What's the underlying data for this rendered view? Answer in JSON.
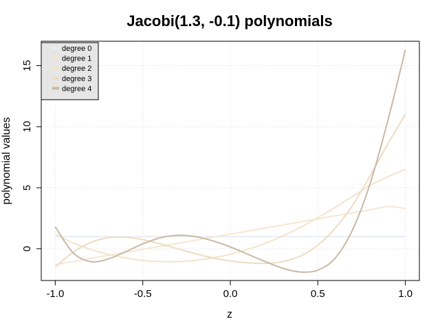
{
  "chart_data": {
    "type": "line",
    "title": "Jacobi(1.3, -0.1) polynomials",
    "xlabel": "z",
    "ylabel": "polynomial values",
    "xlim": [
      -1.0,
      1.0
    ],
    "ylim": [
      -2.6,
      17.0
    ],
    "x_ticks": [
      -1.0,
      -0.5,
      0.0,
      0.5,
      1.0
    ],
    "x_tick_labels": [
      "-1.0",
      "-0.5",
      "0.0",
      "0.5",
      "1.0"
    ],
    "y_ticks": [
      0,
      5,
      10,
      15
    ],
    "y_tick_labels": [
      "0",
      "5",
      "10",
      "15"
    ],
    "grid": true,
    "legend_position": "top-left",
    "x": [
      -1.0,
      -0.9,
      -0.8,
      -0.7,
      -0.6,
      -0.5,
      -0.4,
      -0.3,
      -0.2,
      -0.1,
      0.0,
      0.1,
      0.2,
      0.3,
      0.4,
      0.5,
      0.6,
      0.7,
      0.8,
      0.9,
      1.0
    ],
    "series": [
      {
        "name": "degree 0",
        "color": "#e8eef5",
        "values": [
          1,
          1,
          1,
          1,
          1,
          1,
          1,
          1,
          1,
          1,
          1,
          1,
          1,
          1,
          1,
          1,
          1,
          1,
          1,
          1,
          1
        ]
      },
      {
        "name": "degree 1",
        "color": "#f6e6d2",
        "values": [
          -1.3,
          -1.05,
          -0.8,
          -0.55,
          -0.3,
          -0.05,
          0.2,
          0.45,
          0.7,
          0.95,
          1.2,
          1.45,
          1.7,
          1.95,
          2.2,
          2.45,
          2.7,
          2.95,
          3.2,
          3.45,
          3.3
        ]
      },
      {
        "name": "degree 2",
        "color": "#f3e3cb",
        "values": [
          1.2,
          0.5,
          -0.05,
          -0.45,
          -0.75,
          -0.95,
          -1.05,
          -1.05,
          -0.95,
          -0.75,
          -0.45,
          -0.05,
          0.45,
          1.05,
          1.75,
          2.55,
          3.4,
          4.3,
          5.2,
          5.9,
          6.5
        ]
      },
      {
        "name": "degree 3",
        "color": "#ecdcc2",
        "values": [
          -1.5,
          -0.3,
          0.5,
          0.9,
          0.95,
          0.75,
          0.4,
          0.0,
          -0.4,
          -0.75,
          -1.0,
          -1.15,
          -1.2,
          -1.05,
          -0.6,
          0.3,
          1.7,
          3.6,
          6.0,
          8.6,
          11.0
        ]
      },
      {
        "name": "degree 4",
        "color": "#c9b8a5",
        "values": [
          1.8,
          -0.3,
          -1.05,
          -0.85,
          -0.25,
          0.4,
          0.9,
          1.1,
          1.0,
          0.65,
          0.15,
          -0.45,
          -1.05,
          -1.6,
          -1.9,
          -1.75,
          -0.75,
          1.6,
          5.4,
          10.5,
          16.3
        ]
      }
    ]
  }
}
